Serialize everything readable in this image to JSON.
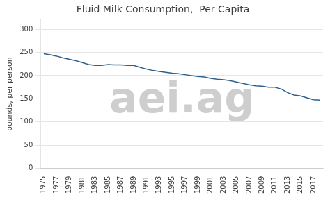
{
  "chart_data": {
    "type": "line",
    "title": "Fluid Milk Consumption,  Per Capita",
    "y_label": "pounds, per person",
    "x": [
      1975,
      1976,
      1977,
      1978,
      1979,
      1980,
      1981,
      1982,
      1983,
      1984,
      1985,
      1986,
      1987,
      1988,
      1989,
      1990,
      1991,
      1992,
      1993,
      1994,
      1995,
      1996,
      1997,
      1998,
      1999,
      2000,
      2001,
      2002,
      2003,
      2004,
      2005,
      2006,
      2007,
      2008,
      2009,
      2010,
      2011,
      2012,
      2013,
      2014,
      2015,
      2016,
      2017,
      2018
    ],
    "values": [
      247,
      245,
      242,
      238,
      235,
      232,
      228,
      224,
      222,
      222,
      224,
      223,
      223,
      222,
      222,
      218,
      214,
      211,
      209,
      207,
      205,
      204,
      202,
      200,
      198,
      197,
      194,
      192,
      191,
      189,
      186,
      183,
      180,
      178,
      177,
      175,
      175,
      171,
      163,
      158,
      156,
      152,
      148,
      147
    ],
    "color": "#2E5F8A",
    "xlim": [
      1974.5,
      2018.5
    ],
    "xticks": [
      1975,
      1977,
      1979,
      1981,
      1983,
      1985,
      1987,
      1989,
      1991,
      1993,
      1995,
      1997,
      1999,
      2001,
      2003,
      2005,
      2007,
      2009,
      2011,
      2013,
      2015,
      2017
    ],
    "ylim": [
      0,
      320
    ],
    "yticks": [
      0,
      50,
      100,
      150,
      200,
      250,
      300
    ],
    "grid": "y",
    "annotations": [
      {
        "text": "aei.ag",
        "color": "#cecece"
      }
    ]
  }
}
